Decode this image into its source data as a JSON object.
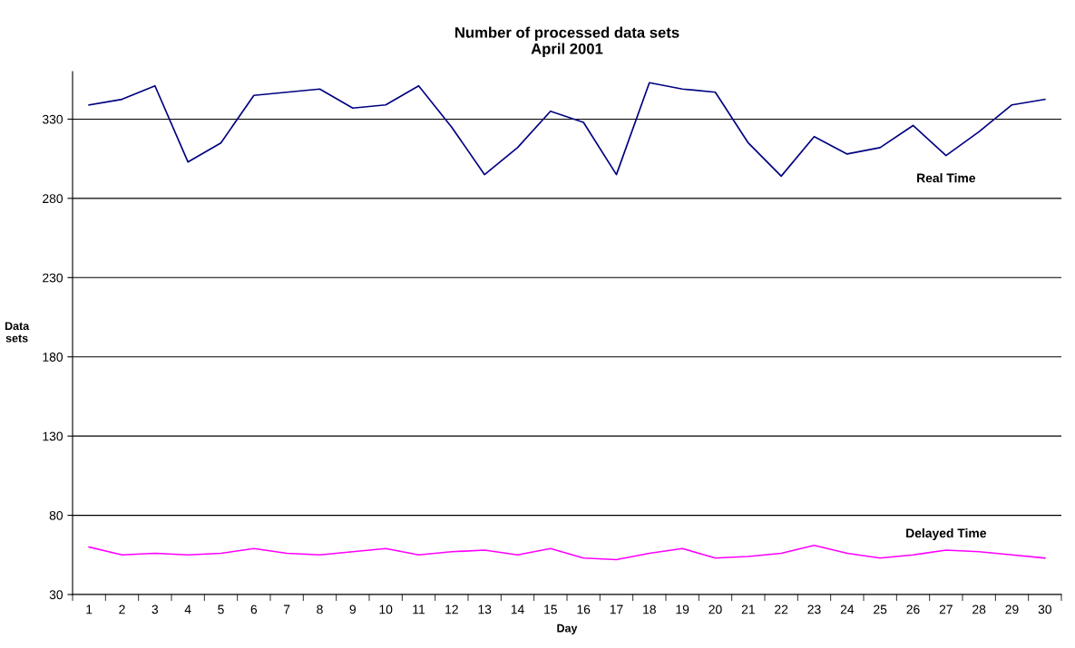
{
  "chart_data": {
    "type": "line",
    "title": "Number of processed data sets\nApril 2001",
    "xlabel": "Day",
    "ylabel": "Data\nsets",
    "categories": [
      "1",
      "2",
      "3",
      "4",
      "5",
      "6",
      "7",
      "8",
      "9",
      "10",
      "11",
      "12",
      "13",
      "14",
      "15",
      "16",
      "17",
      "18",
      "19",
      "20",
      "21",
      "22",
      "23",
      "24",
      "25",
      "26",
      "27",
      "28",
      "29",
      "30"
    ],
    "series": [
      {
        "name": "Real Time",
        "color": "#000080",
        "values": [
          339,
          342.5,
          351,
          303,
          315,
          345,
          347,
          349,
          337,
          339,
          351,
          325,
          295,
          312,
          335,
          328,
          295,
          353,
          349,
          347,
          315,
          294,
          319,
          308,
          312,
          326,
          307,
          322,
          339,
          342.5
        ]
      },
      {
        "name": "Delayed Time",
        "color": "#ff00ff",
        "values": [
          60,
          55,
          56,
          55,
          56,
          59,
          56,
          55,
          57,
          59,
          55,
          57,
          58,
          55,
          59,
          53,
          52,
          56,
          59,
          53,
          54,
          56,
          61,
          56,
          53,
          55,
          58,
          57,
          55,
          53
        ]
      }
    ],
    "ylim": [
      30,
      360
    ],
    "yticks": [
      30,
      80,
      130,
      180,
      230,
      280,
      330
    ],
    "grid": "y",
    "legend": false,
    "marker": "none",
    "line_style": "solid"
  }
}
